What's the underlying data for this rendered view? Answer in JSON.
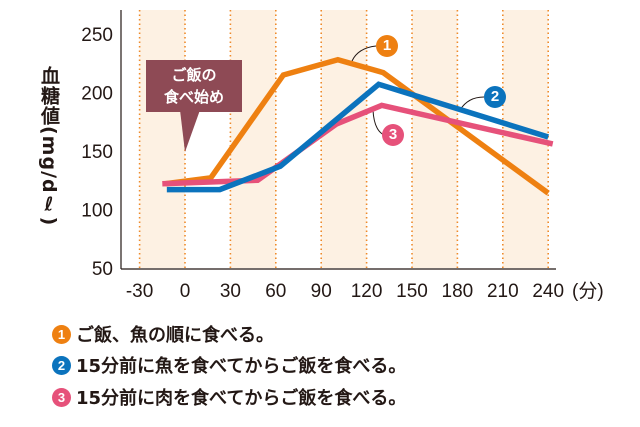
{
  "chart_data": {
    "type": "line",
    "ylabel": "血糖値(mg/dℓ)",
    "xunit": "(分)",
    "xlim": [
      -30,
      240
    ],
    "ylim": [
      50,
      250
    ],
    "xticks": [
      "-30",
      "0",
      "30",
      "60",
      "90",
      "120",
      "150",
      "180",
      "210",
      "240"
    ],
    "yticks": [
      "250",
      "200",
      "150",
      "100",
      "50"
    ],
    "annotation": {
      "line1": "ご飯の",
      "line2": "食べ始め"
    },
    "series": [
      {
        "marker": "1",
        "name": "ご飯、魚の順に食べる。",
        "color": "#ee8011",
        "points": [
          [
            -13,
            122
          ],
          [
            17,
            127
          ],
          [
            65,
            215
          ],
          [
            101,
            228
          ],
          [
            131,
            217
          ],
          [
            240,
            114
          ]
        ]
      },
      {
        "marker": "2",
        "name": "15分前に魚を食べてからご飯を食べる。",
        "color": "#0b73bd",
        "points": [
          [
            -12,
            117
          ],
          [
            23,
            117
          ],
          [
            63,
            137
          ],
          [
            128,
            207
          ],
          [
            240,
            162
          ]
        ]
      },
      {
        "marker": "3",
        "name": "15分前に肉を食べてからご飯を食べる。",
        "color": "#e6517a",
        "points": [
          [
            -15,
            122
          ],
          [
            48,
            125
          ],
          [
            100,
            173
          ],
          [
            130,
            189
          ],
          [
            243,
            156
          ]
        ]
      }
    ]
  }
}
